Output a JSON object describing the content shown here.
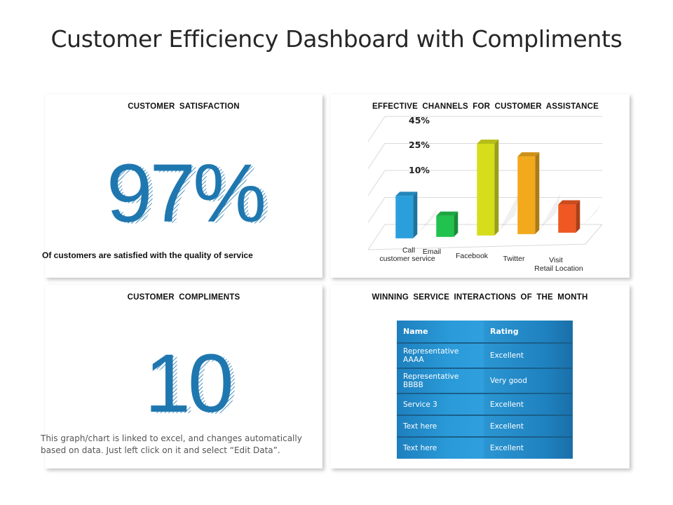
{
  "page": {
    "title": "Customer Efficiency Dashboard with Compliments"
  },
  "satisfaction": {
    "heading": "CUSTOMER  SATISFACTION",
    "value": "97%",
    "caption": "Of customers are satisfied with the quality of service"
  },
  "compliments": {
    "heading": "CUSTOMER  COMPLIMENTS",
    "value": "10",
    "note_line1": "This graph/chart is linked to excel, and changes automatically",
    "note_line2": "based on data. Just left click on it and select “Edit Data”."
  },
  "chart_data": {
    "type": "bar",
    "title": "EFFECTIVE CHANNELS  FOR CUSTOMER  ASSISTANCE",
    "categories": [
      [
        "Call",
        "customer service"
      ],
      [
        "Email"
      ],
      [
        "Facebook"
      ],
      [
        "Twitter"
      ],
      [
        "Visit",
        "Retail Location"
      ]
    ],
    "values": [
      6,
      3,
      13,
      11,
      4
    ],
    "bar_colors": [
      "#2a9fdc",
      "#22c24e",
      "#d6de1c",
      "#f2a91b",
      "#ef5822"
    ],
    "tick_labels": [
      "10%",
      "25%",
      "45%"
    ],
    "xlabel": "",
    "ylabel": "",
    "ylim": [
      0,
      15
    ],
    "grid": true,
    "legend": "none"
  },
  "interactions": {
    "heading": "WINNING SERVICE  INTERACTIONS  OF THE MONTH",
    "columns": [
      "Name",
      "Rating"
    ],
    "rows": [
      {
        "name_line1": "Representative",
        "name_line2": "AAAA",
        "rating": "Excellent"
      },
      {
        "name_line1": "Representative",
        "name_line2": "BBBB",
        "rating": "Very good"
      },
      {
        "name_line1": "Service 3",
        "name_line2": "",
        "rating": "Excellent"
      },
      {
        "name_line1": "Text here",
        "name_line2": "",
        "rating": "Excellent"
      },
      {
        "name_line1": "Text here",
        "name_line2": "",
        "rating": "Excellent"
      }
    ]
  },
  "colors": {
    "accent": "#1f77b0",
    "table_blue": "#2a90cc"
  }
}
